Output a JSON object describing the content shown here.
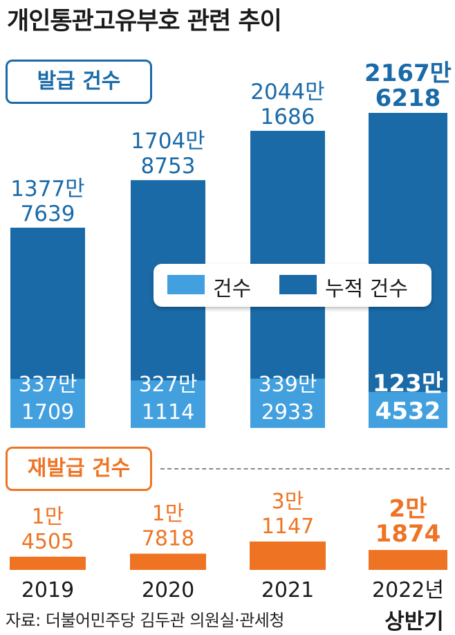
{
  "title": "개인통관고유부호 관련 추이",
  "source": "자료: 더불어민주당 김두관 의원실·관세청",
  "colors": {
    "cumulative": "#1a6aa8",
    "count": "#43a0de",
    "reissue": "#ee7424",
    "text_dark": "#1a1a1a"
  },
  "chart_data": [
    {
      "type": "bar",
      "section_label": "발급 건수",
      "categories": [
        "2019",
        "2020",
        "2021",
        "2022년"
      ],
      "category_sublabels": [
        "",
        "",
        "",
        "상반기"
      ],
      "legend": [
        "건수",
        "누적 건수"
      ],
      "legend_position": "center-right",
      "series": [
        {
          "name": "누적 건수",
          "values": [
            13777639,
            17048753,
            20441686,
            21676218
          ],
          "labels": [
            [
              "1377만",
              "7639"
            ],
            [
              "1704만",
              "8753"
            ],
            [
              "2044만",
              "1686"
            ],
            [
              "2167만",
              "6218"
            ]
          ]
        },
        {
          "name": "건수",
          "values": [
            3371709,
            3271114,
            3392933,
            1234532
          ],
          "labels": [
            [
              "337만",
              "1709"
            ],
            [
              "327만",
              "1114"
            ],
            [
              "339만",
              "2933"
            ],
            [
              "123만",
              "4532"
            ]
          ]
        }
      ]
    },
    {
      "type": "bar",
      "section_label": "재발급 건수",
      "categories": [
        "2019",
        "2020",
        "2021",
        "2022년"
      ],
      "category_sublabels": [
        "",
        "",
        "",
        "상반기"
      ],
      "values": [
        14505,
        17818,
        31147,
        21874
      ],
      "labels": [
        [
          "1만",
          "4505"
        ],
        [
          "1만",
          "7818"
        ],
        [
          "3만",
          "1147"
        ],
        [
          "2만",
          "1874"
        ]
      ]
    }
  ]
}
